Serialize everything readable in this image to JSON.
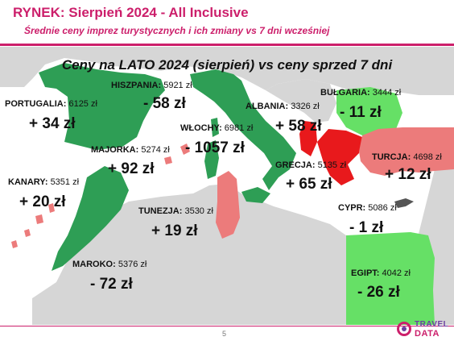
{
  "header": {
    "title": "RYNEK: Sierpień 2024 - All Inclusive",
    "subtitle": "Średnie ceny imprez turystycznych i ich zmiany vs 7 dni wcześniej"
  },
  "map": {
    "heading": "Ceny na LATO 2024 (sierpień) vs ceny sprzed 7 dni",
    "colors": {
      "decrease": "#2e9e55",
      "increase_strong": "#e8191c",
      "increase": "#ec7b7b",
      "neutral": "#d6d6d6",
      "slight": "#555555"
    },
    "destinations": [
      {
        "name": "PORTUGALIA:",
        "price": "6125 zł",
        "change": "+ 34 zł"
      },
      {
        "name": "HISZPANIA:",
        "price": "5921 zł",
        "change": "- 58 zł"
      },
      {
        "name": "WŁOCHY:",
        "price": "6981 zł",
        "change": "- 1057 zł"
      },
      {
        "name": "ALBANIA:",
        "price": "3326 zł",
        "change": "+ 58 zł"
      },
      {
        "name": "BUŁGARIA:",
        "price": "3444 zł",
        "change": "- 11 zł"
      },
      {
        "name": "MAJORKA:",
        "price": "5274 zł",
        "change": "+ 92 zł"
      },
      {
        "name": "TURCJA:",
        "price": "4698 zł",
        "change": "+ 12 zł"
      },
      {
        "name": "GRECJA:",
        "price": "5135 zł",
        "change": "+ 65 zł"
      },
      {
        "name": "KANARY:",
        "price": "5351 zł",
        "change": "+ 20 zł"
      },
      {
        "name": "TUNEZJA:",
        "price": "3530 zł",
        "change": "+ 19 zł"
      },
      {
        "name": "CYPR:",
        "price": "5086 zł",
        "change": "- 1 zł"
      },
      {
        "name": "MAROKO:",
        "price": "5376 zł",
        "change": "- 72 zł"
      },
      {
        "name": "EGIPT:",
        "price": "4042 zł",
        "change": "- 26 zł"
      }
    ]
  },
  "footer": {
    "page_number": "5",
    "logo_top": "TRAVEL",
    "logo_bottom": "DATA"
  }
}
